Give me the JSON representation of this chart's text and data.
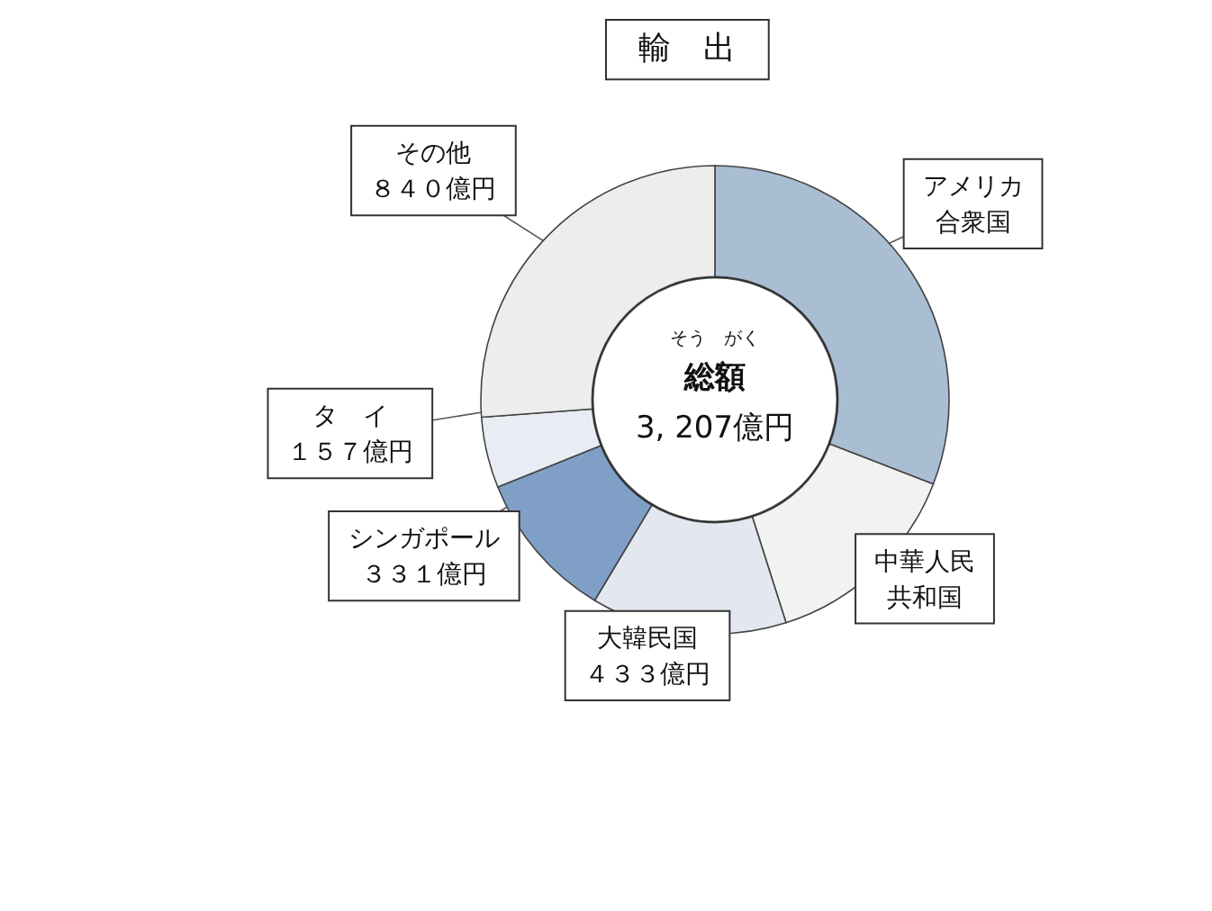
{
  "chart_data": {
    "type": "donut",
    "title": "輸　出",
    "categories": [
      "アメリカ合衆国",
      "中華人民共和国",
      "大韓民国",
      "シンガポール",
      "タ　イ",
      "その他"
    ],
    "values": [
      990,
      456,
      433,
      331,
      157,
      840
    ],
    "value_labels": [
      null,
      null,
      "４３３億円",
      "３３１億円",
      "１５７億円",
      "８４０億円"
    ],
    "colors": [
      "#a9bdd3",
      "#f2f2f2",
      "#e3e8f0",
      "#7f9fc6",
      "#e8edf3",
      "#ededed"
    ],
    "annotations": [
      "そう　がく",
      "総額",
      "3, 207億円"
    ]
  }
}
